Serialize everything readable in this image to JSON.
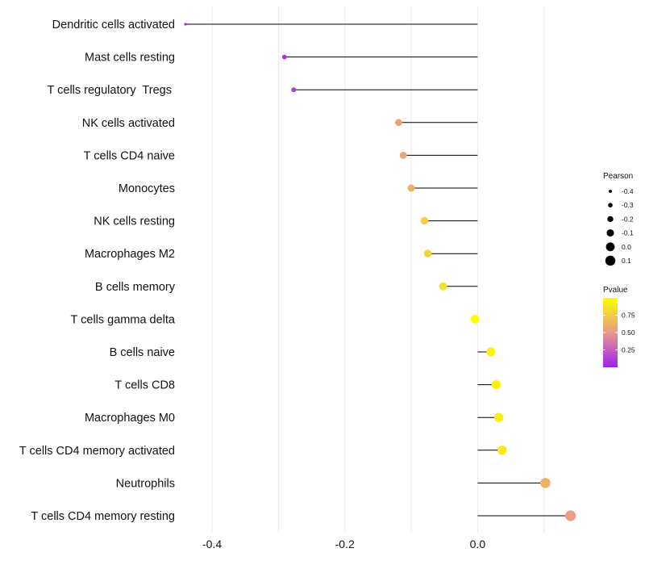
{
  "chart_data": {
    "type": "lollipop",
    "title": "",
    "xlabel": "",
    "ylabel": "",
    "xlim": [
      -0.445,
      0.155
    ],
    "grid": true,
    "legend_position": "right",
    "x_ticks": [
      -0.4,
      -0.2,
      0.0
    ],
    "x_tick_labels": [
      "-0.4",
      "-0.2",
      "0.0"
    ],
    "categories": [
      "Dendritic cells activated",
      "Mast cells resting",
      "T cells regulatory  Tregs ",
      "NK cells activated",
      "T cells CD4 naive",
      "Monocytes",
      "NK cells resting",
      "Macrophages M2",
      "B cells memory",
      "T cells gamma delta",
      "B cells naive",
      "T cells CD8",
      "Macrophages M0",
      "T cells CD4 memory activated",
      "Neutrophils",
      "T cells CD4 memory resting"
    ],
    "pearson": [
      -0.44,
      -0.291,
      -0.277,
      -0.119,
      -0.112,
      -0.1,
      -0.08,
      -0.075,
      -0.052,
      -0.004,
      0.02,
      0.028,
      0.032,
      0.037,
      0.102,
      0.14
    ],
    "pvalue": [
      0.01,
      0.06,
      0.1,
      0.55,
      0.57,
      0.62,
      0.75,
      0.77,
      0.84,
      0.99,
      0.93,
      0.92,
      0.9,
      0.89,
      0.62,
      0.52
    ],
    "size_legend": {
      "title": "Pearson",
      "breaks": [
        -0.4,
        -0.3,
        -0.2,
        -0.1,
        0.0,
        0.1
      ],
      "labels": [
        "-0.4",
        "-0.3",
        "-0.2",
        "-0.1",
        "0.0",
        "0.1"
      ]
    },
    "color_legend": {
      "title": "Pvalue",
      "range": [
        0.0,
        1.0
      ],
      "breaks": [
        0.25,
        0.5,
        0.75
      ],
      "labels": [
        "0.25",
        "0.50",
        "0.75"
      ],
      "low_color": "#a020f0",
      "mid_color": "#e8998a",
      "high_color": "#ffff00"
    }
  }
}
